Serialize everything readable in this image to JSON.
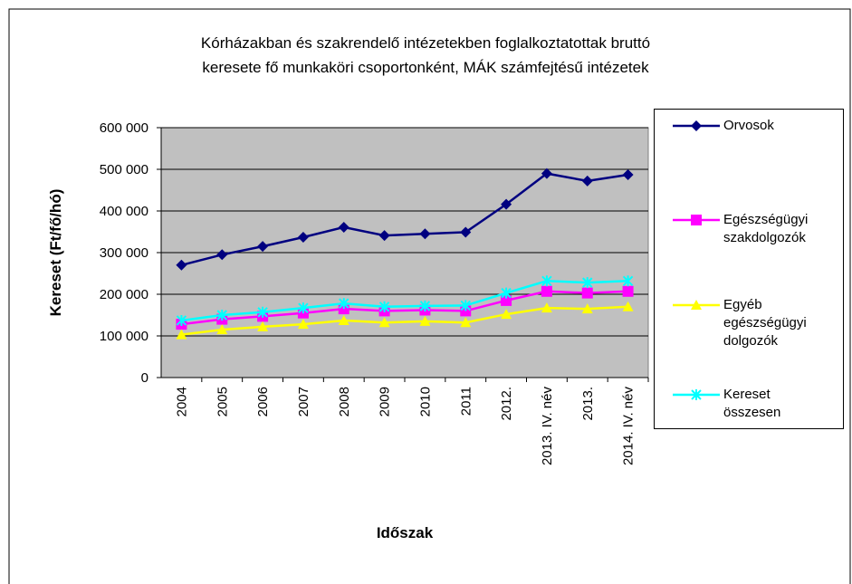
{
  "chart_data": {
    "type": "line",
    "title": [
      "Kórházakban és szakrendelő intézetekben foglalkoztatottak bruttó",
      "keresete fő munkaköri csoportonként, MÁK számfejtésű intézetek"
    ],
    "x_label": "Időszak",
    "y_label": "Kereset (Ft/fő/hó)",
    "categories": [
      "2004",
      "2005",
      "2006",
      "2007",
      "2008",
      "2009",
      "2010",
      "2011",
      "2012.",
      "2013. IV. név",
      "2013.",
      "2014. IV. név"
    ],
    "series": [
      {
        "name": "Orvosok",
        "color": "#000080",
        "marker": "diamond",
        "values": [
          270000,
          295000,
          315000,
          337000,
          361000,
          341000,
          345000,
          349000,
          416000,
          490000,
          472000,
          487000
        ]
      },
      {
        "name": "Egészségügyi szakdolgozók",
        "color": "#ff00ff",
        "marker": "square",
        "values": [
          128000,
          140000,
          147000,
          155000,
          165000,
          160000,
          162000,
          160000,
          185000,
          207000,
          203000,
          207000
        ]
      },
      {
        "name": "Egyéb egészségügyi dolgozók",
        "color": "#ffff00",
        "marker": "triangle",
        "values": [
          103000,
          115000,
          122000,
          128000,
          137000,
          132000,
          135000,
          132000,
          152000,
          167000,
          165000,
          170000
        ]
      },
      {
        "name": "Kereset összesen",
        "color": "#00ffff",
        "marker": "star",
        "values": [
          137000,
          150000,
          157000,
          167000,
          178000,
          170000,
          172000,
          173000,
          203000,
          232000,
          228000,
          232000
        ]
      }
    ],
    "ylim": [
      0,
      600000
    ],
    "yticks": [
      0,
      {
        "value": 100000,
        "label": "100 000"
      },
      {
        "value": 200000,
        "label": "200 000"
      },
      {
        "value": 300000,
        "label": "300 000"
      },
      {
        "value": 400000,
        "label": "400 000"
      },
      {
        "value": 500000,
        "label": "500 000"
      },
      {
        "value": 600000,
        "label": "600 000"
      }
    ],
    "grid": true,
    "plot_background": "#c0c0c0",
    "legend": "right"
  }
}
